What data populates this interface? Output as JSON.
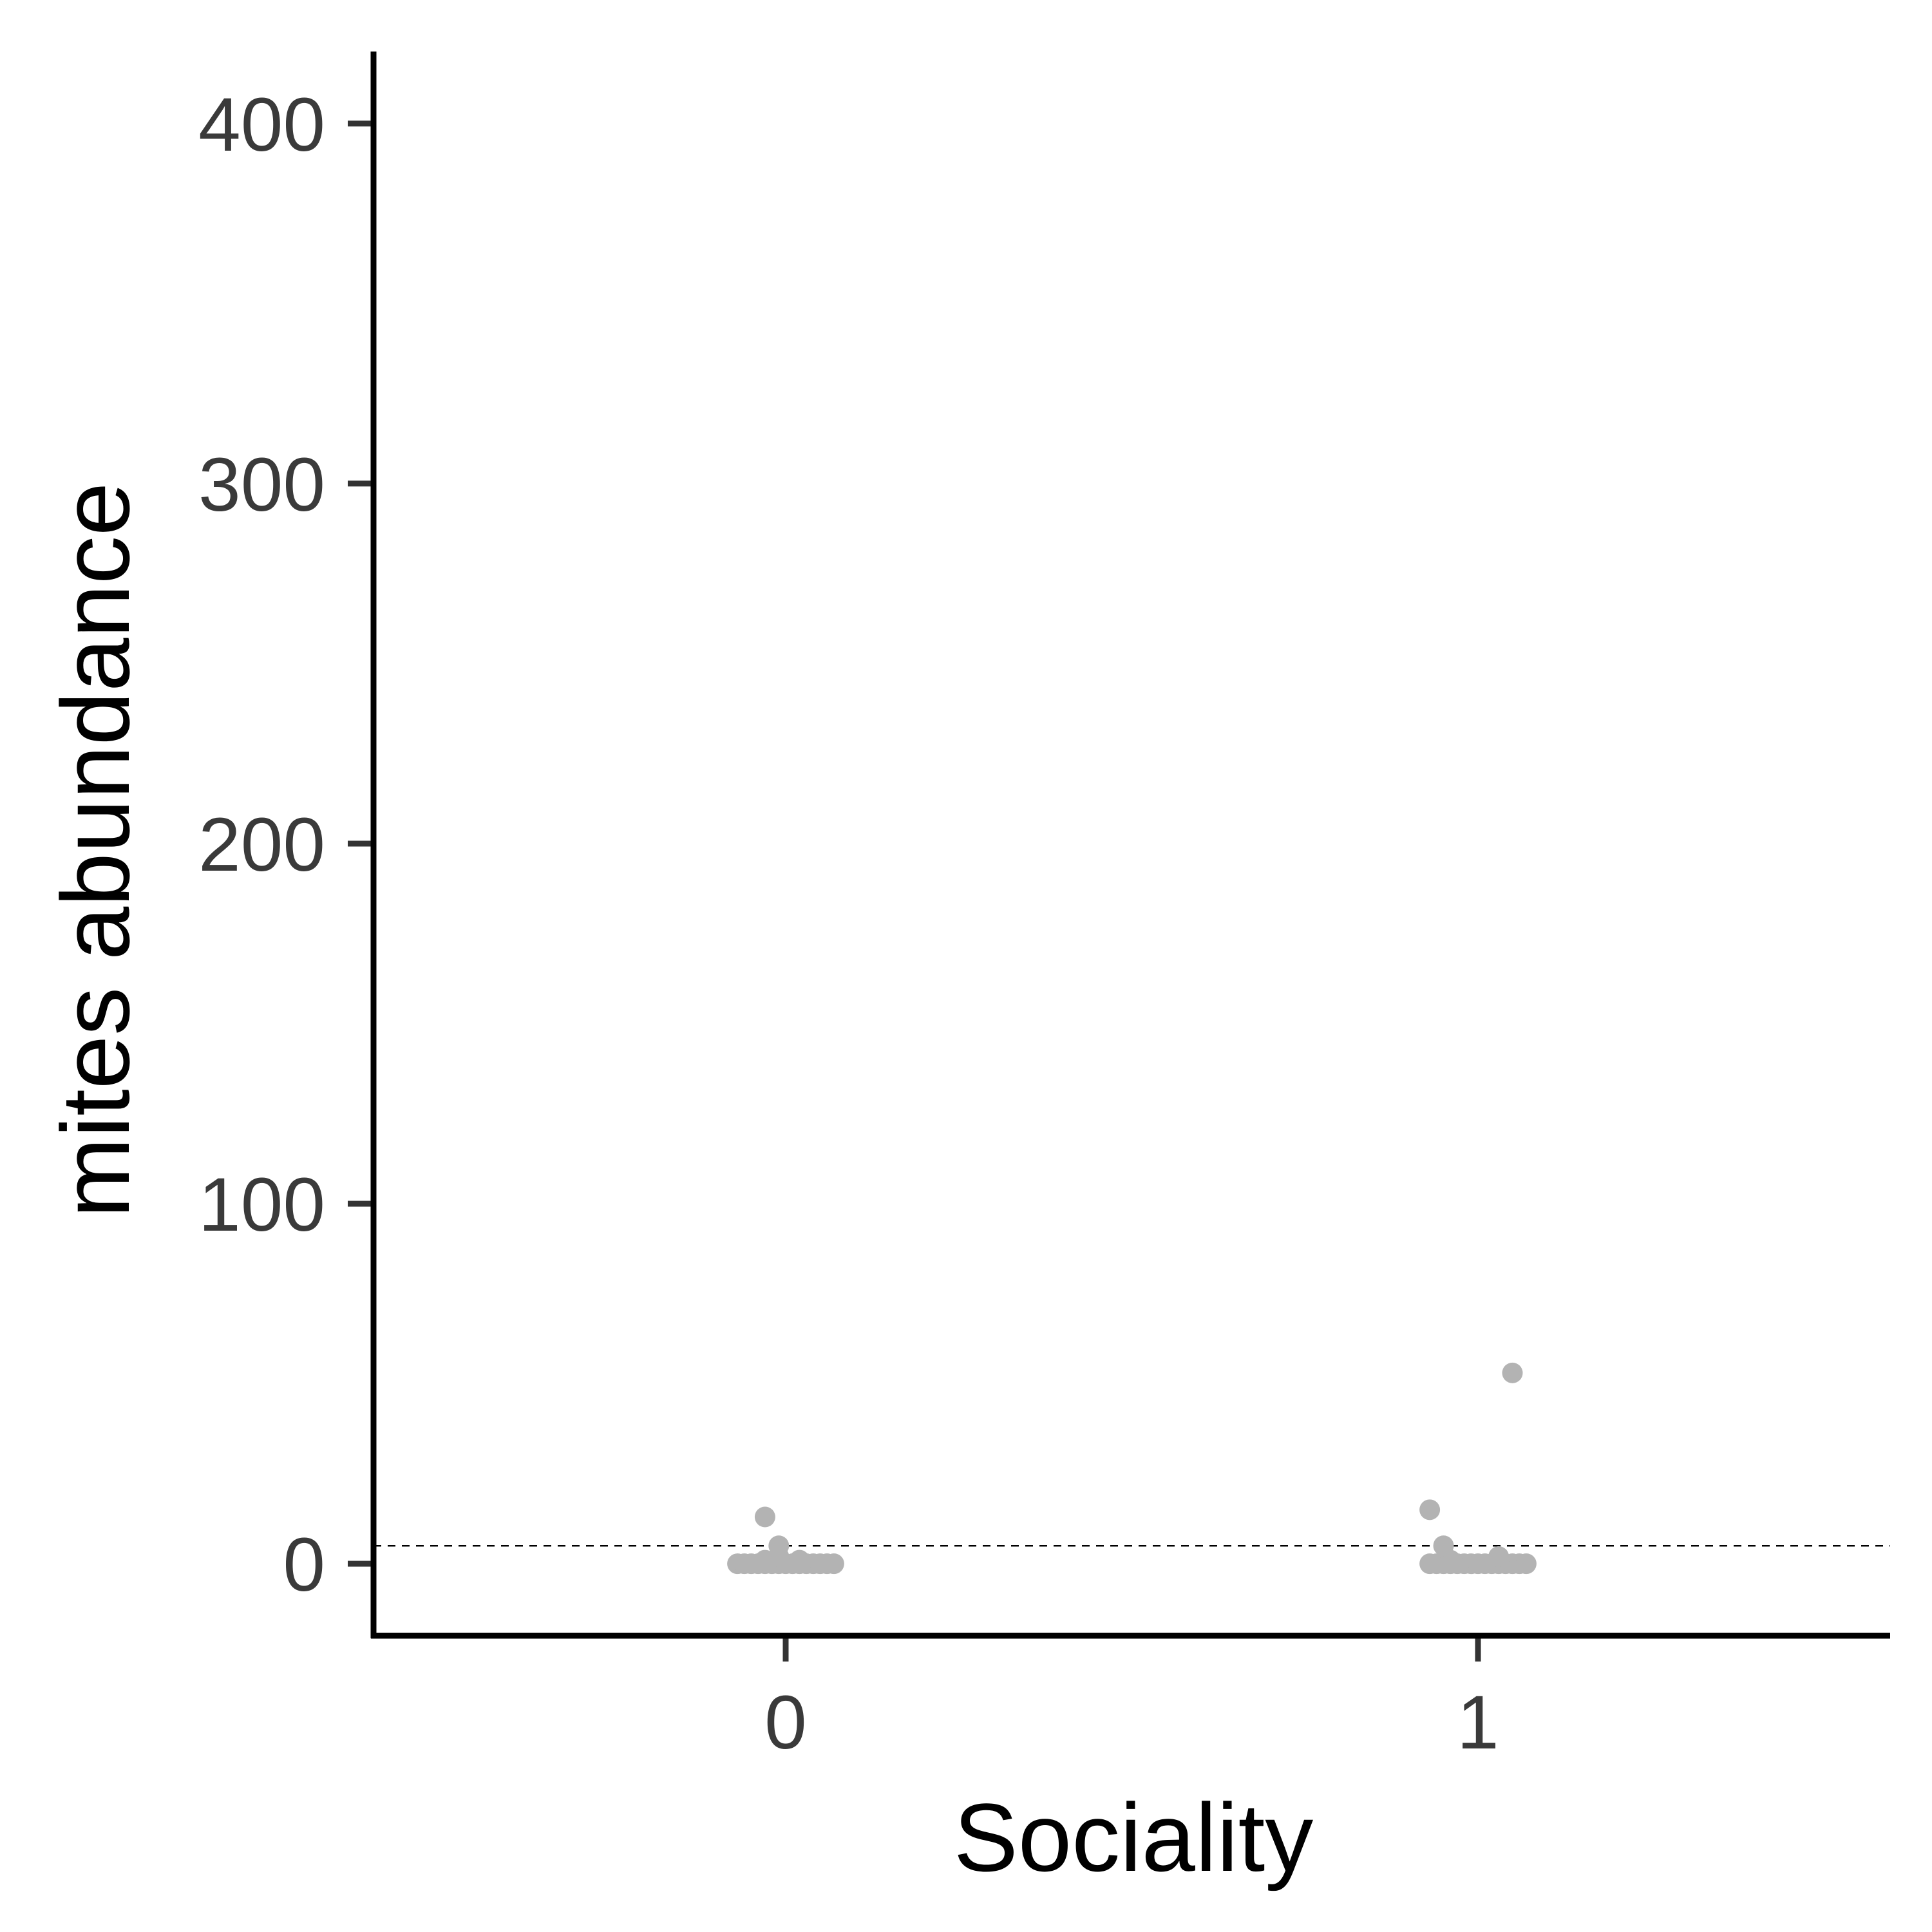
{
  "chart_data": {
    "type": "scatter",
    "xlabel": "Sociality",
    "ylabel": "mites abundance",
    "x_categories": [
      "0",
      "1"
    ],
    "ylim": [
      -20,
      420
    ],
    "yticks": [
      0,
      100,
      200,
      300,
      400
    ],
    "reference_line": {
      "y": 5,
      "style": "dashed"
    },
    "grid": false,
    "legend": "none",
    "point_color": "#b3b3b3",
    "series": [
      {
        "category": "0",
        "points": [
          {
            "x": -0.07,
            "y": 0
          },
          {
            "x": -0.06,
            "y": 0
          },
          {
            "x": -0.05,
            "y": 0
          },
          {
            "x": -0.04,
            "y": 0
          },
          {
            "x": -0.03,
            "y": 0
          },
          {
            "x": -0.02,
            "y": 0
          },
          {
            "x": -0.01,
            "y": 0
          },
          {
            "x": 0.0,
            "y": 0
          },
          {
            "x": 0.01,
            "y": 0
          },
          {
            "x": 0.02,
            "y": 0
          },
          {
            "x": 0.03,
            "y": 0
          },
          {
            "x": 0.04,
            "y": 0
          },
          {
            "x": 0.05,
            "y": 0
          },
          {
            "x": 0.06,
            "y": 0
          },
          {
            "x": 0.07,
            "y": 0
          },
          {
            "x": -0.03,
            "y": 1
          },
          {
            "x": -0.01,
            "y": 2
          },
          {
            "x": 0.02,
            "y": 1
          },
          {
            "x": -0.01,
            "y": 5
          },
          {
            "x": -0.03,
            "y": 13
          }
        ]
      },
      {
        "category": "1",
        "points": [
          {
            "x": -0.07,
            "y": 0
          },
          {
            "x": -0.06,
            "y": 0
          },
          {
            "x": -0.05,
            "y": 0
          },
          {
            "x": -0.04,
            "y": 0
          },
          {
            "x": -0.03,
            "y": 0
          },
          {
            "x": -0.02,
            "y": 0
          },
          {
            "x": -0.01,
            "y": 0
          },
          {
            "x": 0.0,
            "y": 0
          },
          {
            "x": 0.01,
            "y": 0
          },
          {
            "x": 0.02,
            "y": 0
          },
          {
            "x": 0.03,
            "y": 0
          },
          {
            "x": 0.04,
            "y": 0
          },
          {
            "x": 0.05,
            "y": 0
          },
          {
            "x": 0.06,
            "y": 0
          },
          {
            "x": 0.07,
            "y": 0
          },
          {
            "x": -0.04,
            "y": 1
          },
          {
            "x": 0.03,
            "y": 2
          },
          {
            "x": -0.05,
            "y": 5
          },
          {
            "x": -0.07,
            "y": 15
          },
          {
            "x": 0.05,
            "y": 53
          }
        ]
      }
    ]
  }
}
